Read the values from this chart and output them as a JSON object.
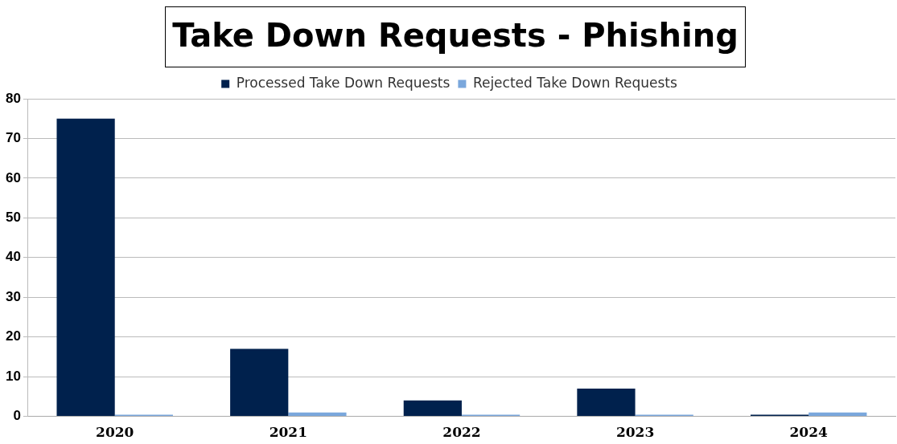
{
  "chart_data": {
    "type": "bar",
    "title": "Take Down Requests - Phishing",
    "categories": [
      "2020",
      "2021",
      "2022",
      "2023",
      "2024"
    ],
    "series": [
      {
        "name": "Processed Take Down Requests",
        "color": "#00214d",
        "values": [
          75,
          17,
          4,
          7,
          0
        ]
      },
      {
        "name": "Rejected Take Down Requests",
        "color": "#7aa7dc",
        "values": [
          0,
          1,
          0,
          0,
          1
        ]
      }
    ],
    "ylim": [
      0,
      80
    ],
    "yticks": [
      0,
      10,
      20,
      30,
      40,
      50,
      60,
      70,
      80
    ],
    "grid": "y",
    "legend": "top"
  }
}
